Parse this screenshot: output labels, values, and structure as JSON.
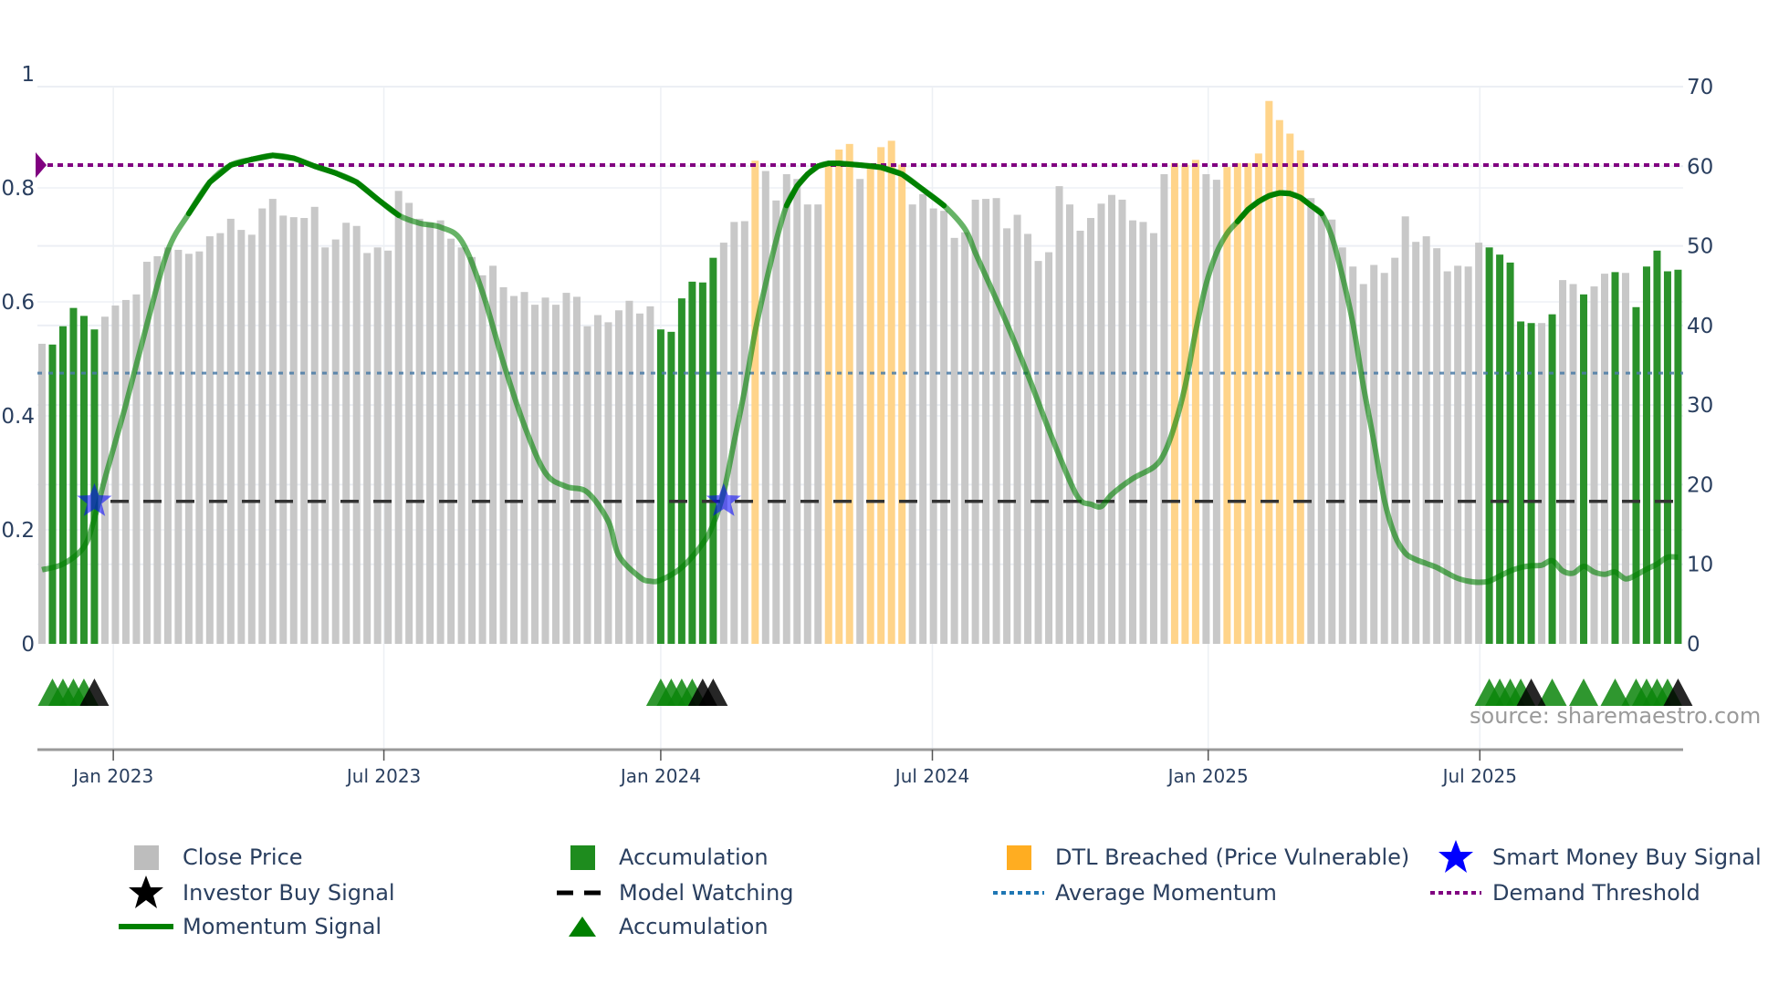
{
  "chart_data": {
    "type": "bar",
    "title": "",
    "source_note": "source: sharemaestro.com",
    "left_axis": {
      "range": [
        0,
        1
      ],
      "ticks": [
        "0",
        "0.2",
        "0.4",
        "0.6",
        "0.8",
        "1"
      ]
    },
    "right_axis": {
      "range": [
        0,
        70
      ],
      "ticks": [
        "0",
        "10",
        "20",
        "30",
        "40",
        "50",
        "60",
        "70"
      ]
    },
    "x_ticks": [
      {
        "label": "Jan 2023",
        "week": 7.8
      },
      {
        "label": "Jul 2023",
        "week": 33.6
      },
      {
        "label": "Jan 2024",
        "week": 60.0
      },
      {
        "label": "Jul 2024",
        "week": 85.9
      },
      {
        "label": "Jan 2025",
        "week": 112.2
      },
      {
        "label": "Jul 2025",
        "week": 138.1
      }
    ],
    "close_price": [
      37.7,
      37.6,
      39.9,
      42.2,
      41.2,
      39.5,
      41.1,
      42.5,
      43.2,
      43.9,
      48.0,
      48.7,
      49.8,
      49.5,
      49.0,
      49.3,
      51.2,
      51.6,
      53.4,
      52.0,
      51.4,
      54.7,
      55.9,
      53.8,
      53.6,
      53.5,
      54.9,
      49.8,
      50.8,
      52.9,
      52.5,
      49.1,
      49.8,
      49.4,
      56.9,
      55.4,
      53.4,
      52.9,
      53.2,
      50.9,
      49.8,
      48.6,
      46.3,
      47.5,
      44.8,
      43.7,
      44.2,
      42.6,
      43.5,
      42.6,
      44.1,
      43.6,
      39.9,
      41.3,
      40.4,
      41.9,
      43.1,
      41.5,
      42.4,
      39.5,
      39.2,
      43.4,
      45.5,
      45.4,
      48.5,
      50.4,
      53.0,
      53.1,
      60.7,
      59.4,
      55.7,
      59.0,
      58.4,
      55.2,
      55.2,
      60.2,
      62.1,
      62.8,
      58.4,
      60.3,
      62.4,
      63.2,
      60.2,
      55.2,
      56.5,
      54.7,
      54.4,
      51.0,
      51.7,
      55.8,
      55.9,
      56.0,
      52.2,
      53.9,
      51.5,
      48.1,
      49.2,
      57.5,
      55.2,
      51.9,
      53.5,
      55.3,
      56.4,
      55.8,
      53.2,
      53.0,
      51.6,
      59.0,
      60.4,
      60.2,
      60.8,
      59.0,
      58.3,
      59.9,
      60.4,
      60.4,
      61.6,
      68.2,
      65.8,
      64.1,
      62.0,
      56.0,
      53.9,
      53.3,
      49.8,
      47.4,
      45.2,
      47.6,
      46.6,
      48.5,
      53.7,
      50.5,
      51.2,
      49.7,
      46.8,
      47.5,
      47.4,
      50.4,
      49.8,
      48.9,
      47.9,
      40.5,
      40.3,
      40.3,
      41.4,
      45.7,
      45.2,
      43.9,
      44.9,
      46.5,
      46.7,
      46.6,
      42.3,
      47.4,
      49.4,
      46.8,
      47.0
    ],
    "accumulation_weeks": [
      2,
      3,
      4,
      5,
      6,
      60,
      61,
      62,
      63,
      64,
      65,
      139,
      140,
      141,
      142,
      143,
      145,
      148,
      151,
      153,
      154,
      155,
      156,
      157
    ],
    "dtl_breached_weeks": [
      69,
      76,
      77,
      78,
      80,
      81,
      82,
      83,
      109,
      110,
      111,
      114,
      115,
      116,
      117,
      118,
      119,
      120,
      121
    ],
    "momentum": [
      [
        1,
        0.13
      ],
      [
        3,
        0.14
      ],
      [
        5,
        0.17
      ],
      [
        6,
        0.22
      ],
      [
        7,
        0.29
      ],
      [
        9,
        0.42
      ],
      [
        11,
        0.56
      ],
      [
        13,
        0.69
      ],
      [
        15,
        0.755
      ],
      [
        17,
        0.81
      ],
      [
        19,
        0.84
      ],
      [
        21,
        0.85
      ],
      [
        23,
        0.857
      ],
      [
        25,
        0.852
      ],
      [
        27,
        0.838
      ],
      [
        29,
        0.826
      ],
      [
        31,
        0.81
      ],
      [
        33,
        0.78
      ],
      [
        35,
        0.752
      ],
      [
        37,
        0.738
      ],
      [
        39,
        0.731
      ],
      [
        41,
        0.707
      ],
      [
        43,
        0.617
      ],
      [
        45,
        0.493
      ],
      [
        47,
        0.383
      ],
      [
        49,
        0.3
      ],
      [
        51,
        0.276
      ],
      [
        53,
        0.266
      ],
      [
        55,
        0.215
      ],
      [
        56,
        0.155
      ],
      [
        58,
        0.117
      ],
      [
        59,
        0.11
      ],
      [
        60,
        0.112
      ],
      [
        62,
        0.134
      ],
      [
        64,
        0.176
      ],
      [
        65,
        0.21
      ],
      [
        66,
        0.266
      ],
      [
        67,
        0.355
      ],
      [
        68,
        0.445
      ],
      [
        69,
        0.548
      ],
      [
        70,
        0.631
      ],
      [
        71,
        0.707
      ],
      [
        72,
        0.769
      ],
      [
        73,
        0.803
      ],
      [
        74,
        0.824
      ],
      [
        75,
        0.838
      ],
      [
        76,
        0.843
      ],
      [
        77,
        0.843
      ],
      [
        79,
        0.84
      ],
      [
        81,
        0.836
      ],
      [
        83,
        0.824
      ],
      [
        85,
        0.797
      ],
      [
        87,
        0.769
      ],
      [
        89,
        0.728
      ],
      [
        90,
        0.686
      ],
      [
        91,
        0.645
      ],
      [
        93,
        0.562
      ],
      [
        95,
        0.472
      ],
      [
        97,
        0.376
      ],
      [
        99,
        0.286
      ],
      [
        100,
        0.252
      ],
      [
        101,
        0.245
      ],
      [
        102,
        0.241
      ],
      [
        103,
        0.262
      ],
      [
        105,
        0.29
      ],
      [
        107,
        0.31
      ],
      [
        108,
        0.334
      ],
      [
        109,
        0.383
      ],
      [
        110,
        0.452
      ],
      [
        111,
        0.548
      ],
      [
        112,
        0.631
      ],
      [
        113,
        0.686
      ],
      [
        114,
        0.72
      ],
      [
        115,
        0.741
      ],
      [
        116,
        0.762
      ],
      [
        117,
        0.776
      ],
      [
        118,
        0.786
      ],
      [
        119,
        0.791
      ],
      [
        120,
        0.79
      ],
      [
        121,
        0.783
      ],
      [
        122,
        0.769
      ],
      [
        123,
        0.755
      ],
      [
        124,
        0.714
      ],
      [
        125,
        0.645
      ],
      [
        126,
        0.562
      ],
      [
        127,
        0.452
      ],
      [
        128,
        0.355
      ],
      [
        129,
        0.252
      ],
      [
        130,
        0.19
      ],
      [
        131,
        0.159
      ],
      [
        132,
        0.148
      ],
      [
        133,
        0.141
      ],
      [
        134,
        0.134
      ],
      [
        135,
        0.124
      ],
      [
        136,
        0.115
      ],
      [
        137,
        0.11
      ],
      [
        138,
        0.108
      ],
      [
        139,
        0.11
      ],
      [
        140,
        0.119
      ],
      [
        141,
        0.128
      ],
      [
        142,
        0.134
      ],
      [
        143,
        0.137
      ],
      [
        144,
        0.138
      ],
      [
        145,
        0.146
      ],
      [
        146,
        0.128
      ],
      [
        147,
        0.124
      ],
      [
        148,
        0.136
      ],
      [
        149,
        0.126
      ],
      [
        150,
        0.122
      ],
      [
        151,
        0.126
      ],
      [
        152,
        0.114
      ],
      [
        153,
        0.121
      ],
      [
        154,
        0.131
      ],
      [
        155,
        0.14
      ],
      [
        156,
        0.152
      ],
      [
        157,
        0.152
      ]
    ],
    "demand_threshold": 0.84,
    "average_momentum": 0.475,
    "model_watching": 0.25,
    "smart_money_buy_weeks": [
      6,
      66
    ],
    "accumulation_marker_weeks": [
      2,
      3,
      4,
      5,
      60,
      61,
      62,
      63,
      139,
      140,
      141,
      142,
      145,
      148,
      151,
      153,
      154,
      155,
      156
    ],
    "investor_buy_weeks": [
      6,
      64,
      65,
      143,
      157
    ],
    "colors": {
      "close": "#c8c8c8",
      "accumulation": "#2b922b",
      "dtl": "#ffd48a",
      "momentum": "#008000",
      "avg": "#4a7ba6",
      "threshold": "#800080",
      "watching": "#333333",
      "smart_money": "#0000ff",
      "investor": "#000000"
    },
    "legend": [
      {
        "label": "Close Price",
        "icon": "gray-square"
      },
      {
        "label": "Accumulation",
        "icon": "green-square"
      },
      {
        "label": "DTL Breached (Price Vulnerable)",
        "icon": "orange-square"
      },
      {
        "label": "Smart Money Buy Signal",
        "icon": "blue-star"
      },
      {
        "label": "Investor Buy Signal",
        "icon": "black-star"
      },
      {
        "label": "Model Watching",
        "icon": "black-dash"
      },
      {
        "label": "Average Momentum",
        "icon": "blue-dot"
      },
      {
        "label": "Demand Threshold",
        "icon": "purple-dot"
      },
      {
        "label": "Momentum Signal",
        "icon": "green-line"
      },
      {
        "label": "Accumulation",
        "icon": "green-triangle"
      }
    ]
  }
}
